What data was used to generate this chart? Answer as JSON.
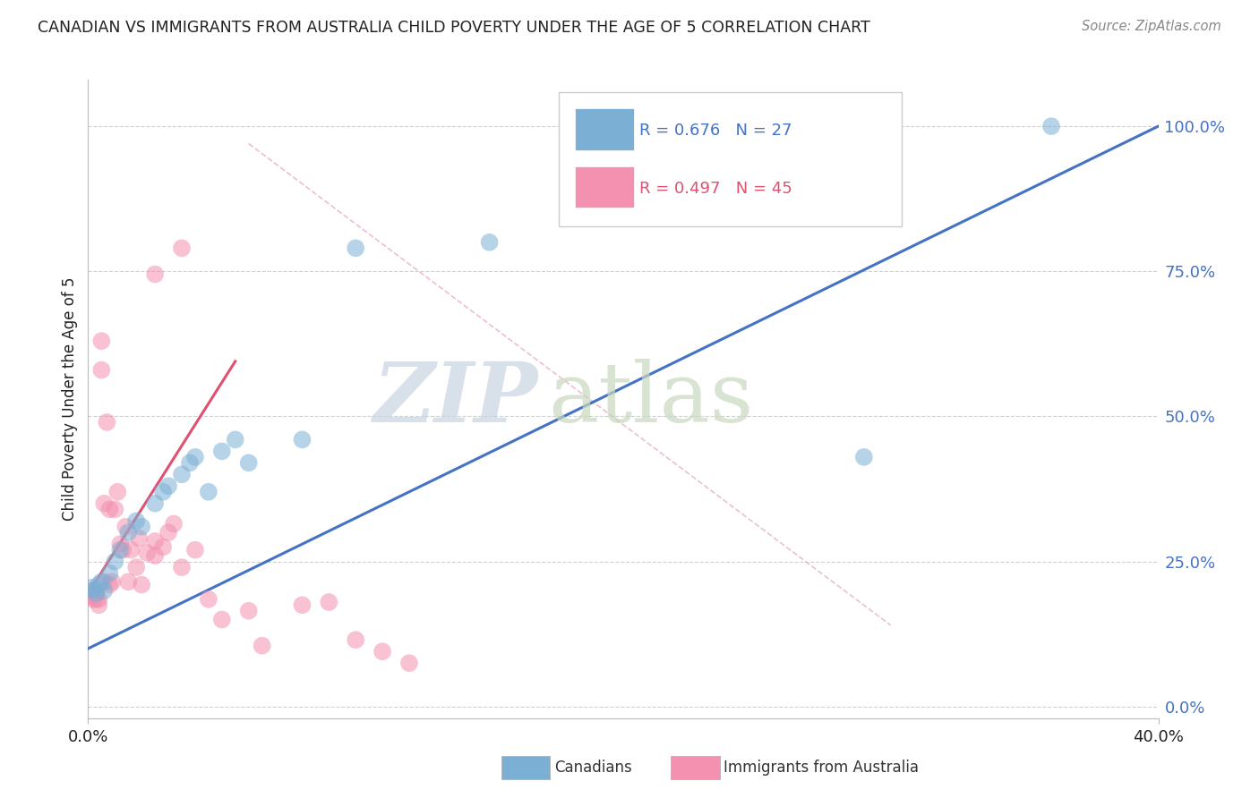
{
  "title": "CANADIAN VS IMMIGRANTS FROM AUSTRALIA CHILD POVERTY UNDER THE AGE OF 5 CORRELATION CHART",
  "source_text": "Source: ZipAtlas.com",
  "ylabel": "Child Poverty Under the Age of 5",
  "xlim": [
    0,
    0.4
  ],
  "ylim": [
    -0.02,
    1.08
  ],
  "y_ticks": [
    0.0,
    0.25,
    0.5,
    0.75,
    1.0
  ],
  "y_tick_labels": [
    "0.0%",
    "25.0%",
    "50.0%",
    "75.0%",
    "100.0%"
  ],
  "x_ticks": [
    0.0,
    0.4
  ],
  "x_tick_labels": [
    "0.0%",
    "40.0%"
  ],
  "legend_entries": [
    {
      "label": "R = 0.676   N = 27",
      "color": "#a8c8e8"
    },
    {
      "label": "R = 0.497   N = 45",
      "color": "#f4afc0"
    }
  ],
  "watermark_zip": "ZIP",
  "watermark_atlas": "atlas",
  "watermark_color_zip": "#c8d8e8",
  "watermark_color_atlas": "#c8d8c8",
  "canadians_x": [
    0.001,
    0.002,
    0.003,
    0.004,
    0.005,
    0.006,
    0.008,
    0.01,
    0.012,
    0.015,
    0.018,
    0.02,
    0.025,
    0.028,
    0.03,
    0.035,
    0.038,
    0.04,
    0.045,
    0.05,
    0.055,
    0.06,
    0.08,
    0.1,
    0.15,
    0.29,
    0.36
  ],
  "canadians_y": [
    0.205,
    0.2,
    0.195,
    0.21,
    0.215,
    0.2,
    0.23,
    0.25,
    0.27,
    0.3,
    0.32,
    0.31,
    0.35,
    0.37,
    0.38,
    0.4,
    0.42,
    0.43,
    0.37,
    0.44,
    0.46,
    0.42,
    0.46,
    0.79,
    0.8,
    0.43,
    1.0
  ],
  "australians_x": [
    0.001,
    0.001,
    0.002,
    0.002,
    0.003,
    0.003,
    0.004,
    0.004,
    0.005,
    0.005,
    0.006,
    0.006,
    0.007,
    0.008,
    0.008,
    0.009,
    0.01,
    0.011,
    0.012,
    0.013,
    0.014,
    0.015,
    0.016,
    0.018,
    0.019,
    0.02,
    0.022,
    0.025,
    0.028,
    0.03,
    0.032,
    0.035,
    0.04,
    0.045,
    0.05,
    0.06,
    0.065,
    0.08,
    0.09,
    0.1,
    0.11,
    0.12,
    0.025,
    0.035,
    0.025
  ],
  "australians_y": [
    0.19,
    0.195,
    0.2,
    0.185,
    0.195,
    0.185,
    0.175,
    0.185,
    0.58,
    0.63,
    0.215,
    0.35,
    0.49,
    0.34,
    0.21,
    0.215,
    0.34,
    0.37,
    0.28,
    0.27,
    0.31,
    0.215,
    0.27,
    0.24,
    0.29,
    0.21,
    0.265,
    0.285,
    0.275,
    0.3,
    0.315,
    0.24,
    0.27,
    0.185,
    0.15,
    0.165,
    0.105,
    0.175,
    0.18,
    0.115,
    0.095,
    0.075,
    0.745,
    0.79,
    0.26
  ],
  "blue_line_x": [
    0.0,
    0.4
  ],
  "blue_line_y": [
    0.1,
    1.0
  ],
  "pink_line_x": [
    0.0,
    0.055
  ],
  "pink_line_y": [
    0.195,
    0.595
  ],
  "ref_line_x": [
    0.06,
    0.3
  ],
  "ref_line_y": [
    0.97,
    0.14
  ],
  "dot_size": 200,
  "canadians_color": "#7bafd4",
  "australians_color": "#f490b0",
  "blue_line_color": "#4472c4",
  "pink_line_color": "#e05070",
  "ref_line_color": "#e8b0c0",
  "grid_color": "#d0d0d0",
  "background_color": "#ffffff",
  "tick_label_color_blue": "#4472c4",
  "tick_label_color_black": "#222222"
}
